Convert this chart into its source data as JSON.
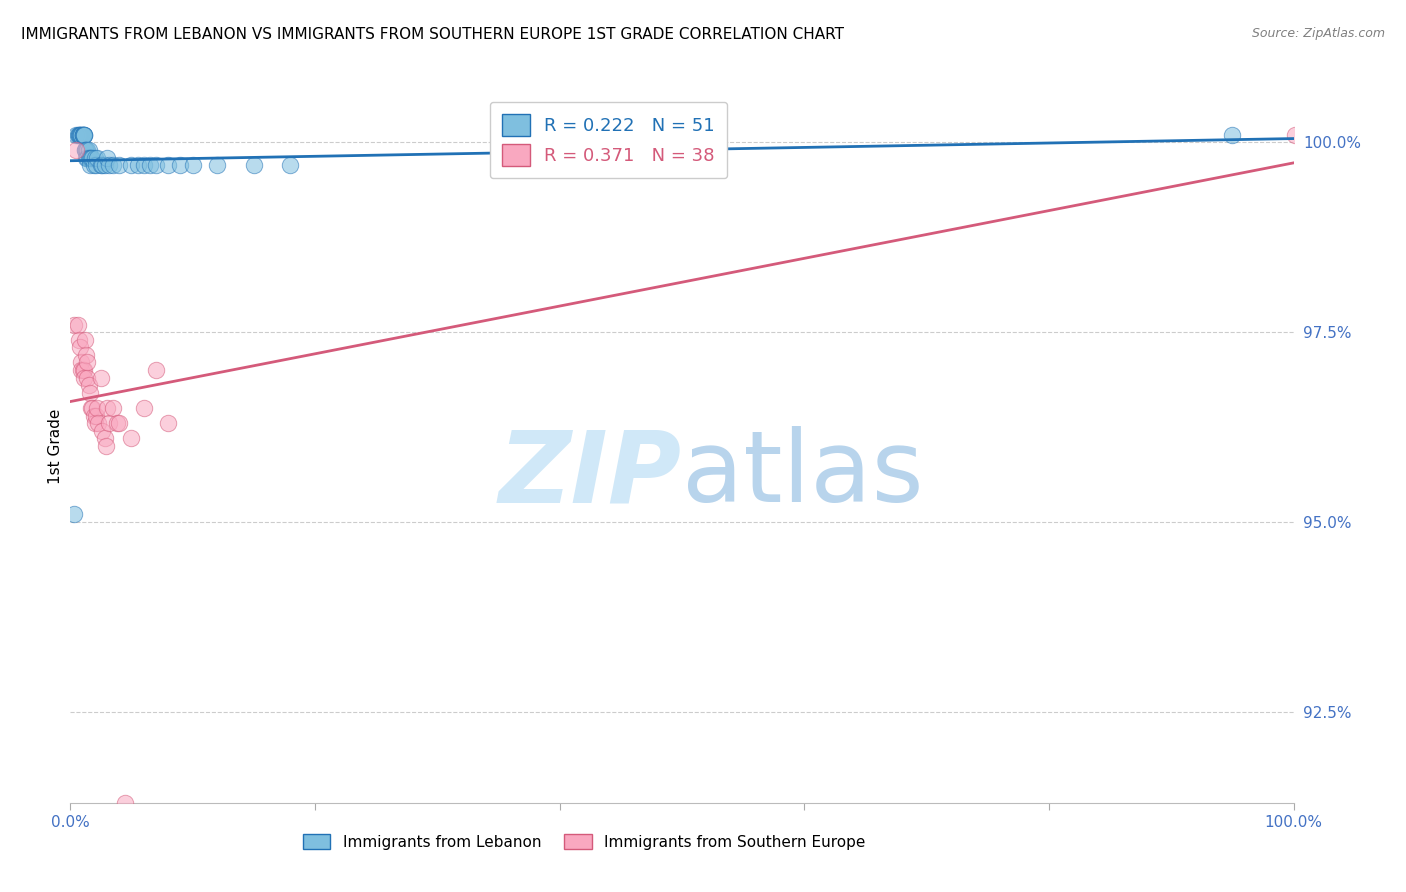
{
  "title": "IMMIGRANTS FROM LEBANON VS IMMIGRANTS FROM SOUTHERN EUROPE 1ST GRADE CORRELATION CHART",
  "source": "Source: ZipAtlas.com",
  "ylabel": "1st Grade",
  "xlim": [
    0.0,
    1.0
  ],
  "ylim": [
    0.913,
    1.007
  ],
  "yticks": [
    0.925,
    0.95,
    0.975,
    1.0
  ],
  "ytick_labels": [
    "92.5%",
    "95.0%",
    "97.5%",
    "100.0%"
  ],
  "xticks": [
    0.0,
    0.2,
    0.4,
    0.6,
    0.8,
    1.0
  ],
  "xtick_labels": [
    "0.0%",
    "",
    "",
    "",
    "",
    "100.0%"
  ],
  "blue_color": "#7fbfdf",
  "pink_color": "#f9a8c0",
  "blue_line_color": "#2171b5",
  "pink_line_color": "#d45a7a",
  "watermark_zip_color": "#d0e8f8",
  "watermark_atlas_color": "#b8d4ec",
  "blue_scatter_x": [
    0.003,
    0.005,
    0.006,
    0.007,
    0.007,
    0.008,
    0.008,
    0.009,
    0.009,
    0.01,
    0.01,
    0.01,
    0.01,
    0.011,
    0.011,
    0.011,
    0.012,
    0.012,
    0.013,
    0.013,
    0.014,
    0.014,
    0.015,
    0.015,
    0.016,
    0.016,
    0.017,
    0.018,
    0.019,
    0.02,
    0.021,
    0.022,
    0.025,
    0.026,
    0.028,
    0.03,
    0.032,
    0.035,
    0.04,
    0.05,
    0.055,
    0.06,
    0.065,
    0.07,
    0.08,
    0.09,
    0.1,
    0.12,
    0.15,
    0.18,
    0.95
  ],
  "blue_scatter_y": [
    0.951,
    1.001,
    1.001,
    1.001,
    1.001,
    1.001,
    1.001,
    1.001,
    1.001,
    1.001,
    1.001,
    1.001,
    1.001,
    1.001,
    1.001,
    1.001,
    0.999,
    0.999,
    0.999,
    0.998,
    0.999,
    0.998,
    0.999,
    0.998,
    0.998,
    0.997,
    0.998,
    0.998,
    0.997,
    0.998,
    0.997,
    0.998,
    0.997,
    0.997,
    0.997,
    0.998,
    0.997,
    0.997,
    0.997,
    0.997,
    0.997,
    0.997,
    0.997,
    0.997,
    0.997,
    0.997,
    0.997,
    0.997,
    0.997,
    0.997,
    1.001
  ],
  "pink_scatter_x": [
    0.003,
    0.005,
    0.006,
    0.007,
    0.008,
    0.009,
    0.009,
    0.01,
    0.011,
    0.011,
    0.012,
    0.013,
    0.014,
    0.014,
    0.015,
    0.016,
    0.017,
    0.018,
    0.019,
    0.02,
    0.021,
    0.022,
    0.023,
    0.025,
    0.026,
    0.028,
    0.029,
    0.03,
    0.032,
    0.035,
    0.038,
    0.04,
    0.045,
    0.05,
    0.06,
    0.07,
    0.08,
    1.001
  ],
  "pink_scatter_y": [
    0.976,
    0.999,
    0.976,
    0.974,
    0.973,
    0.971,
    0.97,
    0.97,
    0.97,
    0.969,
    0.974,
    0.972,
    0.971,
    0.969,
    0.968,
    0.967,
    0.965,
    0.965,
    0.964,
    0.963,
    0.964,
    0.965,
    0.963,
    0.969,
    0.962,
    0.961,
    0.96,
    0.965,
    0.963,
    0.965,
    0.963,
    0.963,
    0.913,
    0.961,
    0.965,
    0.97,
    0.963,
    1.001
  ]
}
